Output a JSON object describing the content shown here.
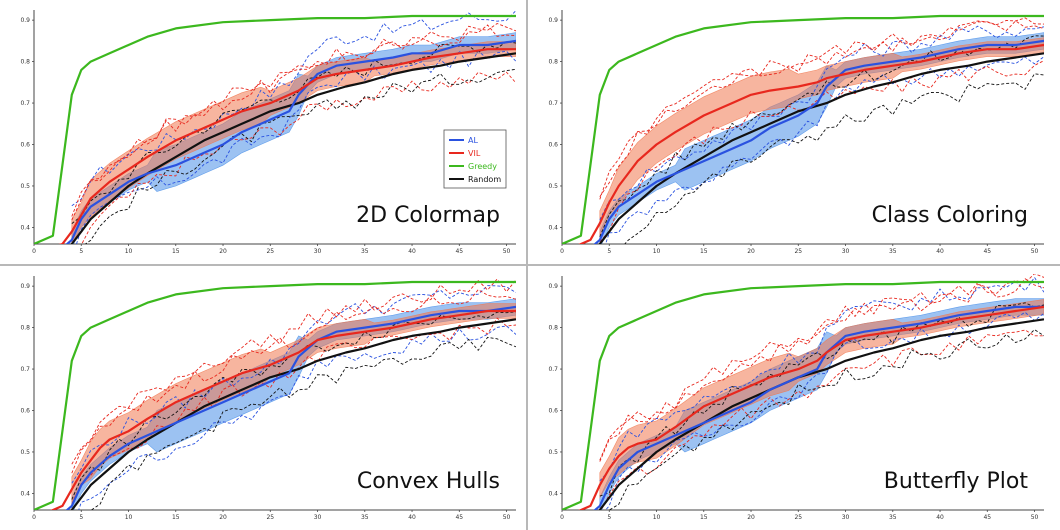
{
  "colors": {
    "al": "#2a52e0",
    "al_band": "#4a90e8",
    "vil": "#e8281e",
    "vil_band": "#f07850",
    "greedy": "#3cb81e",
    "random": "#111111",
    "panel_border": "#d0d0d0",
    "divider": "#b8b8b8"
  },
  "legend": {
    "entries": [
      {
        "label": "AL",
        "color_key": "al"
      },
      {
        "label": "VIL",
        "color_key": "vil"
      },
      {
        "label": "Greedy",
        "color_key": "greedy"
      },
      {
        "label": "Random",
        "color_key": "random"
      }
    ]
  },
  "chart_data": [
    {
      "type": "line",
      "title": "2D Colormap",
      "xlabel": "",
      "ylabel": "",
      "xlim": [
        0,
        51
      ],
      "ylim": [
        0.36,
        0.91
      ],
      "x_ticks": [
        "0",
        "5",
        "10",
        "15",
        "20",
        "25",
        "30",
        "35",
        "40",
        "45",
        "50"
      ],
      "y_ticks": [
        "0.4",
        "0.5",
        "0.6",
        "0.7",
        "0.8",
        "0.9"
      ],
      "grid": false,
      "legend_position": "middle-right",
      "series": [
        {
          "name": "Greedy",
          "x": [
            0,
            2,
            3,
            4,
            5,
            6,
            8,
            10,
            12,
            15,
            20,
            25,
            30,
            35,
            40,
            45,
            51
          ],
          "values": [
            0.36,
            0.38,
            0.55,
            0.72,
            0.78,
            0.8,
            0.82,
            0.84,
            0.86,
            0.88,
            0.895,
            0.9,
            0.905,
            0.905,
            0.91,
            0.91,
            0.91
          ]
        },
        {
          "name": "AL",
          "x": [
            0,
            3,
            4,
            5,
            6,
            8,
            10,
            12,
            15,
            18,
            20,
            22,
            25,
            27,
            28,
            30,
            32,
            35,
            38,
            40,
            42,
            45,
            48,
            51
          ],
          "values": [
            0.34,
            0.35,
            0.37,
            0.42,
            0.45,
            0.48,
            0.51,
            0.53,
            0.55,
            0.58,
            0.6,
            0.63,
            0.66,
            0.68,
            0.72,
            0.77,
            0.79,
            0.8,
            0.81,
            0.82,
            0.82,
            0.84,
            0.84,
            0.85
          ]
        },
        {
          "name": "VIL",
          "x": [
            0,
            3,
            4,
            5,
            6,
            7,
            8,
            10,
            12,
            15,
            18,
            20,
            22,
            25,
            27,
            28,
            30,
            32,
            35,
            38,
            40,
            42,
            45,
            48,
            51
          ],
          "values": [
            0.34,
            0.36,
            0.39,
            0.43,
            0.47,
            0.49,
            0.51,
            0.54,
            0.57,
            0.61,
            0.64,
            0.66,
            0.68,
            0.7,
            0.72,
            0.73,
            0.76,
            0.77,
            0.78,
            0.79,
            0.8,
            0.81,
            0.82,
            0.83,
            0.83
          ]
        },
        {
          "name": "Random",
          "x": [
            0,
            3,
            4,
            5,
            6,
            8,
            10,
            12,
            15,
            18,
            20,
            22,
            25,
            28,
            30,
            33,
            35,
            38,
            40,
            43,
            45,
            48,
            51
          ],
          "values": [
            0.33,
            0.34,
            0.36,
            0.39,
            0.42,
            0.46,
            0.5,
            0.53,
            0.57,
            0.61,
            0.63,
            0.65,
            0.68,
            0.7,
            0.72,
            0.74,
            0.75,
            0.77,
            0.78,
            0.79,
            0.8,
            0.81,
            0.82
          ]
        }
      ]
    },
    {
      "type": "line",
      "title": "Class Coloring",
      "xlabel": "",
      "ylabel": "",
      "xlim": [
        0,
        51
      ],
      "ylim": [
        0.36,
        0.91
      ],
      "x_ticks": [
        "0",
        "5",
        "10",
        "15",
        "20",
        "25",
        "30",
        "35",
        "40",
        "45",
        "50"
      ],
      "y_ticks": [
        "0.4",
        "0.5",
        "0.6",
        "0.7",
        "0.8",
        "0.9"
      ],
      "grid": false,
      "legend_position": "none",
      "series": [
        {
          "name": "Greedy",
          "x": [
            0,
            2,
            3,
            4,
            5,
            6,
            8,
            10,
            12,
            15,
            20,
            25,
            30,
            35,
            40,
            45,
            51
          ],
          "values": [
            0.36,
            0.38,
            0.55,
            0.72,
            0.78,
            0.8,
            0.82,
            0.84,
            0.86,
            0.88,
            0.895,
            0.9,
            0.905,
            0.905,
            0.91,
            0.91,
            0.91
          ]
        },
        {
          "name": "AL",
          "x": [
            0,
            3,
            4,
            5,
            6,
            8,
            10,
            12,
            15,
            18,
            20,
            22,
            25,
            27,
            28,
            30,
            32,
            35,
            38,
            40,
            42,
            45,
            48,
            51
          ],
          "values": [
            0.34,
            0.35,
            0.37,
            0.42,
            0.45,
            0.48,
            0.51,
            0.53,
            0.56,
            0.59,
            0.61,
            0.64,
            0.67,
            0.7,
            0.74,
            0.78,
            0.79,
            0.8,
            0.81,
            0.82,
            0.83,
            0.84,
            0.84,
            0.85
          ]
        },
        {
          "name": "VIL",
          "x": [
            0,
            3,
            4,
            5,
            6,
            7,
            8,
            10,
            12,
            15,
            18,
            20,
            22,
            25,
            27,
            28,
            30,
            32,
            35,
            38,
            40,
            42,
            45,
            48,
            51
          ],
          "values": [
            0.34,
            0.37,
            0.41,
            0.46,
            0.5,
            0.53,
            0.56,
            0.6,
            0.63,
            0.67,
            0.7,
            0.72,
            0.73,
            0.74,
            0.75,
            0.76,
            0.77,
            0.78,
            0.79,
            0.8,
            0.81,
            0.82,
            0.83,
            0.83,
            0.84
          ]
        },
        {
          "name": "Random",
          "x": [
            0,
            3,
            4,
            5,
            6,
            8,
            10,
            12,
            15,
            18,
            20,
            22,
            25,
            28,
            30,
            33,
            35,
            38,
            40,
            43,
            45,
            48,
            51
          ],
          "values": [
            0.33,
            0.34,
            0.36,
            0.39,
            0.42,
            0.46,
            0.5,
            0.53,
            0.57,
            0.61,
            0.63,
            0.65,
            0.68,
            0.7,
            0.72,
            0.74,
            0.75,
            0.77,
            0.78,
            0.79,
            0.8,
            0.81,
            0.82
          ]
        }
      ]
    },
    {
      "type": "line",
      "title": "Convex Hulls",
      "xlabel": "",
      "ylabel": "",
      "xlim": [
        0,
        51
      ],
      "ylim": [
        0.36,
        0.91
      ],
      "x_ticks": [
        "0",
        "5",
        "10",
        "15",
        "20",
        "25",
        "30",
        "35",
        "40",
        "45",
        "50"
      ],
      "y_ticks": [
        "0.4",
        "0.5",
        "0.6",
        "0.7",
        "0.8",
        "0.9"
      ],
      "grid": false,
      "legend_position": "none",
      "series": [
        {
          "name": "Greedy",
          "x": [
            0,
            2,
            3,
            4,
            5,
            6,
            8,
            10,
            12,
            15,
            20,
            25,
            30,
            35,
            40,
            45,
            51
          ],
          "values": [
            0.36,
            0.38,
            0.55,
            0.72,
            0.78,
            0.8,
            0.82,
            0.84,
            0.86,
            0.88,
            0.895,
            0.9,
            0.905,
            0.905,
            0.91,
            0.91,
            0.91
          ]
        },
        {
          "name": "AL",
          "x": [
            0,
            3,
            4,
            5,
            6,
            8,
            10,
            12,
            15,
            18,
            20,
            22,
            25,
            27,
            28,
            30,
            32,
            35,
            38,
            40,
            42,
            45,
            48,
            51
          ],
          "values": [
            0.34,
            0.35,
            0.37,
            0.42,
            0.45,
            0.49,
            0.52,
            0.54,
            0.57,
            0.6,
            0.62,
            0.64,
            0.67,
            0.69,
            0.73,
            0.77,
            0.79,
            0.8,
            0.81,
            0.82,
            0.83,
            0.84,
            0.84,
            0.85
          ]
        },
        {
          "name": "VIL",
          "x": [
            0,
            3,
            4,
            5,
            6,
            7,
            8,
            10,
            12,
            15,
            18,
            20,
            22,
            25,
            27,
            28,
            30,
            32,
            35,
            38,
            40,
            42,
            45,
            48,
            51
          ],
          "values": [
            0.34,
            0.37,
            0.41,
            0.45,
            0.48,
            0.51,
            0.53,
            0.55,
            0.58,
            0.62,
            0.65,
            0.67,
            0.69,
            0.71,
            0.73,
            0.74,
            0.77,
            0.78,
            0.79,
            0.8,
            0.81,
            0.82,
            0.83,
            0.84,
            0.84
          ]
        },
        {
          "name": "Random",
          "x": [
            0,
            3,
            4,
            5,
            6,
            8,
            10,
            12,
            15,
            18,
            20,
            22,
            25,
            28,
            30,
            33,
            35,
            38,
            40,
            43,
            45,
            48,
            51
          ],
          "values": [
            0.33,
            0.34,
            0.36,
            0.39,
            0.42,
            0.46,
            0.5,
            0.53,
            0.57,
            0.61,
            0.63,
            0.65,
            0.68,
            0.7,
            0.72,
            0.74,
            0.75,
            0.77,
            0.78,
            0.79,
            0.8,
            0.81,
            0.82
          ]
        }
      ]
    },
    {
      "type": "line",
      "title": "Butterfly Plot",
      "xlabel": "",
      "ylabel": "",
      "xlim": [
        0,
        51
      ],
      "ylim": [
        0.36,
        0.91
      ],
      "x_ticks": [
        "0",
        "5",
        "10",
        "15",
        "20",
        "25",
        "30",
        "35",
        "40",
        "45",
        "50"
      ],
      "y_ticks": [
        "0.4",
        "0.5",
        "0.6",
        "0.7",
        "0.8",
        "0.9"
      ],
      "grid": false,
      "legend_position": "none",
      "series": [
        {
          "name": "Greedy",
          "x": [
            0,
            2,
            3,
            4,
            5,
            6,
            8,
            10,
            12,
            15,
            20,
            25,
            30,
            35,
            40,
            45,
            51
          ],
          "values": [
            0.36,
            0.38,
            0.55,
            0.72,
            0.78,
            0.8,
            0.82,
            0.84,
            0.86,
            0.88,
            0.895,
            0.9,
            0.905,
            0.905,
            0.91,
            0.91,
            0.91
          ]
        },
        {
          "name": "AL",
          "x": [
            0,
            3,
            4,
            5,
            6,
            8,
            10,
            12,
            15,
            18,
            20,
            22,
            25,
            27,
            28,
            30,
            32,
            35,
            38,
            40,
            42,
            45,
            48,
            51
          ],
          "values": [
            0.34,
            0.35,
            0.37,
            0.42,
            0.46,
            0.5,
            0.52,
            0.54,
            0.57,
            0.6,
            0.62,
            0.65,
            0.68,
            0.7,
            0.74,
            0.78,
            0.79,
            0.8,
            0.81,
            0.82,
            0.83,
            0.84,
            0.85,
            0.85
          ]
        },
        {
          "name": "VIL",
          "x": [
            0,
            3,
            4,
            5,
            6,
            7,
            8,
            10,
            12,
            15,
            18,
            20,
            22,
            25,
            27,
            28,
            30,
            32,
            35,
            38,
            40,
            42,
            45,
            48,
            51
          ],
          "values": [
            0.34,
            0.37,
            0.42,
            0.46,
            0.49,
            0.51,
            0.52,
            0.53,
            0.56,
            0.61,
            0.64,
            0.66,
            0.68,
            0.7,
            0.72,
            0.74,
            0.77,
            0.78,
            0.79,
            0.8,
            0.81,
            0.82,
            0.83,
            0.84,
            0.85
          ]
        },
        {
          "name": "Random",
          "x": [
            0,
            3,
            4,
            5,
            6,
            8,
            10,
            12,
            15,
            18,
            20,
            22,
            25,
            28,
            30,
            33,
            35,
            38,
            40,
            43,
            45,
            48,
            51
          ],
          "values": [
            0.33,
            0.34,
            0.36,
            0.39,
            0.42,
            0.46,
            0.5,
            0.53,
            0.57,
            0.61,
            0.63,
            0.65,
            0.68,
            0.7,
            0.72,
            0.74,
            0.75,
            0.77,
            0.78,
            0.79,
            0.8,
            0.81,
            0.82
          ]
        }
      ]
    }
  ]
}
